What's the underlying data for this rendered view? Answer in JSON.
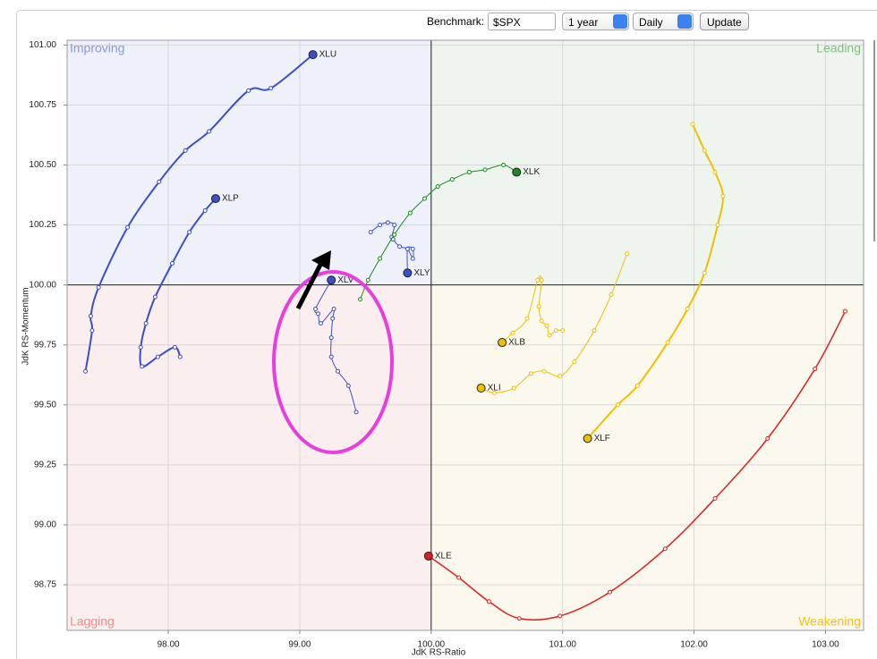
{
  "controls": {
    "benchmark_label": "Benchmark:",
    "benchmark": "$SPX",
    "period": "1 year",
    "frequency": "Daily",
    "button": "Update"
  },
  "chart_data": {
    "type": "rrg",
    "x_label": "JdK RS-Ratio",
    "y_label": "JdK RS-Momentum",
    "quadrants": {
      "top_left": "Improving",
      "top_right": "Leading",
      "bottom_left": "Lagging",
      "bottom_right": "Weakening"
    },
    "center": [
      100,
      100
    ],
    "xlim": [
      97.23,
      103.29
    ],
    "ylim": [
      98.56,
      101.02
    ],
    "grid": true,
    "xticks": [
      {
        "value": 98,
        "label": "98.00"
      },
      {
        "value": 99,
        "label": "99.00"
      },
      {
        "value": 100,
        "label": "100.00"
      },
      {
        "value": 101,
        "label": "101.00"
      },
      {
        "value": 102,
        "label": "102.00"
      },
      {
        "value": 103,
        "label": "103.00"
      }
    ],
    "yticks": [
      {
        "value": 98.75,
        "label": "98.75"
      },
      {
        "value": 99,
        "label": "99.00"
      },
      {
        "value": 99.25,
        "label": "99.25"
      },
      {
        "value": 99.5,
        "label": "99.50"
      },
      {
        "value": 99.75,
        "label": "99.75"
      },
      {
        "value": 100,
        "label": "100.00"
      },
      {
        "value": 100.25,
        "label": "100.25"
      },
      {
        "value": 100.5,
        "label": "100.50"
      },
      {
        "value": 100.75,
        "label": "100.75"
      },
      {
        "value": 101,
        "label": "101.00"
      }
    ],
    "series": [
      {
        "name": "XLU",
        "color": "#3a4fc8",
        "line_width": 2,
        "x": [
          97.37,
          97.42,
          97.41,
          97.47,
          97.69,
          97.93,
          98.13,
          98.31,
          98.61,
          98.78,
          99.1
        ],
        "values": [
          99.64,
          99.81,
          99.87,
          99.99,
          100.24,
          100.43,
          100.56,
          100.64,
          100.81,
          100.82,
          100.96
        ]
      },
      {
        "name": "XLP",
        "color": "#3a4fc8",
        "line_width": 2,
        "x": [
          98.09,
          98.05,
          97.92,
          97.8,
          97.79,
          97.83,
          97.9,
          98.03,
          98.16,
          98.28,
          98.36
        ],
        "values": [
          99.7,
          99.74,
          99.7,
          99.66,
          99.74,
          99.84,
          99.95,
          100.09,
          100.22,
          100.31,
          100.36
        ]
      },
      {
        "name": "XLV",
        "color": "#3a4fc8",
        "line_width": 1,
        "x": [
          99.43,
          99.37,
          99.29,
          99.24,
          99.24,
          99.25,
          99.26,
          99.16,
          99.14,
          99.12,
          99.24
        ],
        "values": [
          99.47,
          99.58,
          99.64,
          99.7,
          99.78,
          99.86,
          99.9,
          99.84,
          99.88,
          99.9,
          100.02
        ]
      },
      {
        "name": "XLY",
        "color": "#3a4fc8",
        "line_width": 1,
        "x": [
          99.54,
          99.61,
          99.67,
          99.72,
          99.7,
          99.71,
          99.76,
          99.82,
          99.86,
          99.86,
          99.82,
          99.82
        ],
        "values": [
          100.22,
          100.25,
          100.26,
          100.25,
          100.2,
          100.19,
          100.16,
          100.15,
          100.11,
          100.15,
          100.15,
          100.05
        ]
      },
      {
        "name": "XLK",
        "color": "#1d8a1d",
        "line_width": 1,
        "x": [
          99.46,
          99.52,
          99.61,
          99.72,
          99.84,
          99.95,
          100.05,
          100.16,
          100.29,
          100.41,
          100.55,
          100.65
        ],
        "values": [
          99.94,
          100.02,
          100.11,
          100.21,
          100.3,
          100.36,
          100.41,
          100.44,
          100.47,
          100.48,
          100.5,
          100.47
        ]
      },
      {
        "name": "XLB",
        "color": "#f0c000",
        "line_width": 1,
        "x": [
          101.0,
          100.95,
          100.9,
          100.88,
          100.84,
          100.82,
          100.84,
          100.81,
          100.73,
          100.62,
          100.54
        ],
        "values": [
          99.81,
          99.81,
          99.79,
          99.83,
          99.85,
          99.91,
          100.02,
          100.02,
          99.86,
          99.8,
          99.76
        ]
      },
      {
        "name": "XLI",
        "color": "#f0c000",
        "line_width": 1,
        "x": [
          101.49,
          101.37,
          101.24,
          101.09,
          100.98,
          100.86,
          100.76,
          100.63,
          100.48,
          100.38
        ],
        "values": [
          100.13,
          99.96,
          99.81,
          99.68,
          99.62,
          99.64,
          99.63,
          99.57,
          99.55,
          99.57
        ]
      },
      {
        "name": "XLF",
        "color": "#f0c000",
        "line_width": 2,
        "x": [
          101.99,
          102.08,
          102.16,
          102.22,
          102.18,
          102.08,
          101.95,
          101.8,
          101.57,
          101.42,
          101.19
        ],
        "values": [
          100.67,
          100.56,
          100.47,
          100.37,
          100.25,
          100.05,
          99.9,
          99.76,
          99.58,
          99.5,
          99.36
        ]
      },
      {
        "name": "XLE",
        "color": "#e02020",
        "line_width": 1.5,
        "x": [
          103.15,
          102.92,
          102.56,
          102.16,
          101.78,
          101.36,
          100.98,
          100.67,
          100.44,
          100.21,
          99.98
        ],
        "values": [
          99.89,
          99.65,
          99.36,
          99.11,
          98.9,
          98.72,
          98.62,
          98.61,
          98.68,
          98.78,
          98.87
        ]
      }
    ]
  }
}
